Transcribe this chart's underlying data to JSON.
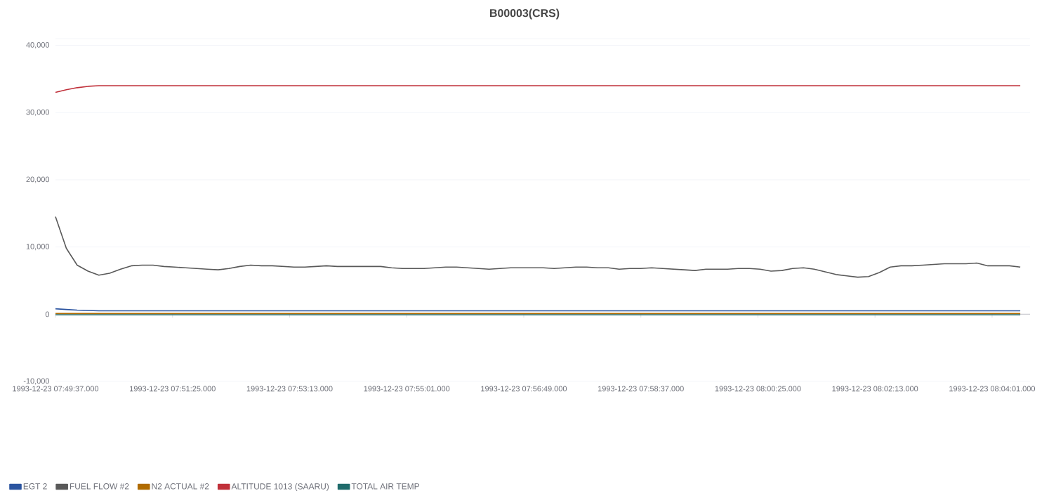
{
  "chart_data": {
    "type": "line",
    "title": "B00003(CRS)",
    "x": [
      "1993-12-23T07:49:37",
      "1993-12-23T07:49:47",
      "1993-12-23T07:49:57",
      "1993-12-23T07:50:07",
      "1993-12-23T07:50:17",
      "1993-12-23T07:50:27",
      "1993-12-23T07:50:37",
      "1993-12-23T07:50:47",
      "1993-12-23T07:50:57",
      "1993-12-23T07:51:07",
      "1993-12-23T07:51:17",
      "1993-12-23T07:51:27",
      "1993-12-23T07:51:37",
      "1993-12-23T07:51:47",
      "1993-12-23T07:51:57",
      "1993-12-23T07:52:07",
      "1993-12-23T07:52:17",
      "1993-12-23T07:52:27",
      "1993-12-23T07:52:37",
      "1993-12-23T07:52:47",
      "1993-12-23T07:52:57",
      "1993-12-23T07:53:07",
      "1993-12-23T07:53:17",
      "1993-12-23T07:53:27",
      "1993-12-23T07:53:37",
      "1993-12-23T07:53:47",
      "1993-12-23T07:53:57",
      "1993-12-23T07:54:07",
      "1993-12-23T07:54:17",
      "1993-12-23T07:54:27",
      "1993-12-23T07:54:37",
      "1993-12-23T07:54:47",
      "1993-12-23T07:54:57",
      "1993-12-23T07:55:07",
      "1993-12-23T07:55:17",
      "1993-12-23T07:55:27",
      "1993-12-23T07:55:37",
      "1993-12-23T07:55:47",
      "1993-12-23T07:55:57",
      "1993-12-23T07:56:07",
      "1993-12-23T07:56:17",
      "1993-12-23T07:56:27",
      "1993-12-23T07:56:37",
      "1993-12-23T07:56:47",
      "1993-12-23T07:56:57",
      "1993-12-23T07:57:07",
      "1993-12-23T07:57:17",
      "1993-12-23T07:57:27",
      "1993-12-23T07:57:37",
      "1993-12-23T07:57:47",
      "1993-12-23T07:57:57",
      "1993-12-23T07:58:07",
      "1993-12-23T07:58:17",
      "1993-12-23T07:58:27",
      "1993-12-23T07:58:37",
      "1993-12-23T07:58:47",
      "1993-12-23T07:58:57",
      "1993-12-23T07:59:07",
      "1993-12-23T07:59:17",
      "1993-12-23T07:59:27",
      "1993-12-23T07:59:37",
      "1993-12-23T07:59:47",
      "1993-12-23T07:59:57",
      "1993-12-23T08:00:07",
      "1993-12-23T08:00:17",
      "1993-12-23T08:00:27",
      "1993-12-23T08:00:37",
      "1993-12-23T08:00:47",
      "1993-12-23T08:00:57",
      "1993-12-23T08:01:07",
      "1993-12-23T08:01:17",
      "1993-12-23T08:01:27",
      "1993-12-23T08:01:37",
      "1993-12-23T08:01:47",
      "1993-12-23T08:01:57",
      "1993-12-23T08:02:07",
      "1993-12-23T08:02:17",
      "1993-12-23T08:02:27",
      "1993-12-23T08:02:37",
      "1993-12-23T08:02:47",
      "1993-12-23T08:02:57",
      "1993-12-23T08:03:07",
      "1993-12-23T08:03:17",
      "1993-12-23T08:03:27",
      "1993-12-23T08:03:37",
      "1993-12-23T08:03:47",
      "1993-12-23T08:03:57",
      "1993-12-23T08:04:07",
      "1993-12-23T08:04:17",
      "1993-12-23T08:04:27"
    ],
    "series": [
      {
        "name": "EGT 2",
        "color": "#2b54a0",
        "x": [
          "1993-12-23T07:49:37",
          "1993-12-23T07:49:47",
          "1993-12-23T07:49:57",
          "1993-12-23T07:50:17",
          "1993-12-23T07:51:17",
          "1993-12-23T07:54:37",
          "1993-12-23T07:58:37",
          "1993-12-23T08:01:17",
          "1993-12-23T08:02:17",
          "1993-12-23T08:03:17",
          "1993-12-23T08:04:27"
        ],
        "values": [
          800,
          700,
          600,
          500,
          500,
          500,
          500,
          500,
          500,
          500,
          500
        ]
      },
      {
        "name": "FUEL FLOW #2",
        "color": "#595959",
        "values": [
          14500,
          9800,
          7300,
          6400,
          5800,
          6100,
          6700,
          7200,
          7300,
          7300,
          7100,
          7000,
          6900,
          6800,
          6700,
          6600,
          6800,
          7100,
          7300,
          7200,
          7200,
          7100,
          7000,
          7000,
          7100,
          7200,
          7100,
          7100,
          7100,
          7100,
          7100,
          6900,
          6800,
          6800,
          6800,
          6900,
          7000,
          7000,
          6900,
          6800,
          6700,
          6800,
          6900,
          6900,
          6900,
          6900,
          6800,
          6900,
          7000,
          7000,
          6900,
          6900,
          6700,
          6800,
          6800,
          6900,
          6800,
          6700,
          6600,
          6500,
          6700,
          6700,
          6700,
          6800,
          6800,
          6700,
          6400,
          6500,
          6800,
          6900,
          6700,
          6300,
          5900,
          5700,
          5500,
          5600,
          6200,
          7000,
          7200,
          7200,
          7300,
          7400,
          7500,
          7500,
          7500,
          7600,
          7200,
          7200,
          7200,
          7000
        ]
      },
      {
        "name": "N2 ACTUAL #2",
        "color": "#b06b00",
        "x": [
          "1993-12-23T07:49:37",
          "1993-12-23T08:04:27"
        ],
        "values": [
          100,
          100
        ]
      },
      {
        "name": "ALTITUDE 1013 (SAARU)",
        "color": "#c0303a",
        "x": [
          "1993-12-23T07:49:37",
          "1993-12-23T07:49:47",
          "1993-12-23T07:49:57",
          "1993-12-23T07:50:07",
          "1993-12-23T07:50:17",
          "1993-12-23T07:50:37",
          "1993-12-23T08:01:37",
          "1993-12-23T08:04:27"
        ],
        "values": [
          33000,
          33400,
          33700,
          33900,
          34000,
          34000,
          34000,
          34000
        ]
      },
      {
        "name": "TOTAL AIR TEMP",
        "color": "#1f6b6b",
        "x": [
          "1993-12-23T07:49:37",
          "1993-12-23T08:04:27"
        ],
        "values": [
          -100,
          -100
        ]
      }
    ],
    "xlim": [
      "1993-12-23T07:49:37",
      "1993-12-23T08:04:36"
    ],
    "xticks": [
      {
        "value": "1993-12-23T07:49:37",
        "label": "1993-12-23 07:49:37.000"
      },
      {
        "value": "1993-12-23T07:51:25",
        "label": "1993-12-23 07:51:25.000"
      },
      {
        "value": "1993-12-23T07:53:13",
        "label": "1993-12-23 07:53:13.000"
      },
      {
        "value": "1993-12-23T07:55:01",
        "label": "1993-12-23 07:55:01.000"
      },
      {
        "value": "1993-12-23T07:56:49",
        "label": "1993-12-23 07:56:49.000"
      },
      {
        "value": "1993-12-23T07:58:37",
        "label": "1993-12-23 07:58:37.000"
      },
      {
        "value": "1993-12-23T08:00:25",
        "label": "1993-12-23 08:00:25.000"
      },
      {
        "value": "1993-12-23T08:02:13",
        "label": "1993-12-23 08:02:13.000"
      },
      {
        "value": "1993-12-23T08:04:01",
        "label": "1993-12-23 08:04:01.000"
      }
    ],
    "ylim": [
      -10000,
      41000
    ],
    "yticks": [
      {
        "value": -10000,
        "label": "-10,000"
      },
      {
        "value": 0,
        "label": "0"
      },
      {
        "value": 10000,
        "label": "10,000"
      },
      {
        "value": 20000,
        "label": "20,000"
      },
      {
        "value": 30000,
        "label": "30,000"
      },
      {
        "value": 40000,
        "label": "40,000"
      },
      {
        "value": 41000,
        "label": null
      }
    ],
    "grid": "y",
    "legend": "bottom left"
  }
}
